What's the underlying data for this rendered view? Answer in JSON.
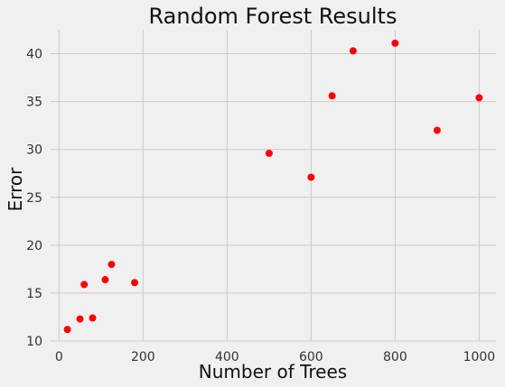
{
  "chart_data": {
    "type": "scatter",
    "title": "Random Forest Results",
    "xlabel": "Number of Trees",
    "ylabel": "Error",
    "xlim": [
      -20,
      1040
    ],
    "ylim": [
      10,
      42.5
    ],
    "xticks": [
      0,
      200,
      400,
      600,
      800,
      1000
    ],
    "yticks": [
      10,
      15,
      20,
      25,
      30,
      35,
      40
    ],
    "grid": true,
    "marker_color": "#ff0000",
    "background_color": "#f0f0f0",
    "grid_color": "#cbcbcb",
    "points": [
      {
        "x": 20,
        "y": 11.2
      },
      {
        "x": 50,
        "y": 12.3
      },
      {
        "x": 60,
        "y": 15.9
      },
      {
        "x": 80,
        "y": 12.4
      },
      {
        "x": 110,
        "y": 16.4
      },
      {
        "x": 125,
        "y": 18.0
      },
      {
        "x": 180,
        "y": 16.1
      },
      {
        "x": 500,
        "y": 29.6
      },
      {
        "x": 600,
        "y": 27.1
      },
      {
        "x": 650,
        "y": 35.6
      },
      {
        "x": 700,
        "y": 40.3
      },
      {
        "x": 800,
        "y": 41.1
      },
      {
        "x": 900,
        "y": 32.0
      },
      {
        "x": 1000,
        "y": 35.4
      }
    ]
  }
}
